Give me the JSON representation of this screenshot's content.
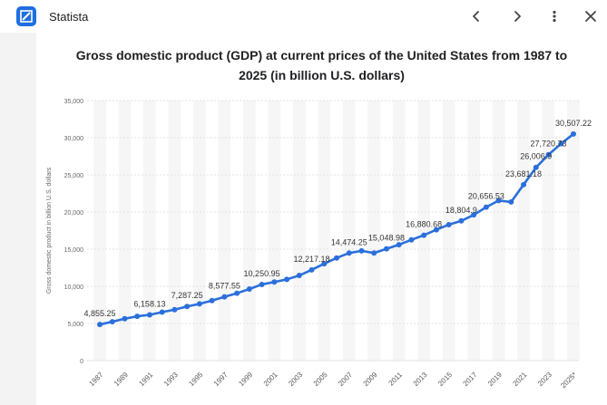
{
  "app": {
    "title": "Statista",
    "logo_icon": "statista-logo-icon",
    "brand_color": "#1f6fe0"
  },
  "nav": {
    "back_icon": "chevron-left-icon",
    "forward_icon": "chevron-right-icon",
    "menu_icon": "more-vertical-icon",
    "close_icon": "close-icon"
  },
  "chart_data": {
    "type": "line",
    "title_line1": "Gross domestic product (GDP) at current prices of the United States from 1987 to",
    "title_line2": "2025 (in billion U.S. dollars)",
    "ylabel": "Gross domestic product in billion U.S. dollars",
    "xlabel": "",
    "ylim": [
      0,
      35000
    ],
    "yticks": [
      0,
      5000,
      10000,
      15000,
      20000,
      25000,
      30000,
      35000
    ],
    "ytick_labels": [
      "0",
      "5,000",
      "10,000",
      "15,000",
      "20,000",
      "25,000",
      "30,000",
      "35,000"
    ],
    "grid": true,
    "line_color": "#2b6fdb",
    "x": [
      1987,
      1988,
      1989,
      1990,
      1991,
      1992,
      1993,
      1994,
      1995,
      1996,
      1997,
      1998,
      1999,
      2000,
      2001,
      2002,
      2003,
      2004,
      2005,
      2006,
      2007,
      2008,
      2009,
      2010,
      2011,
      2012,
      2013,
      2014,
      2015,
      2016,
      2017,
      2018,
      2019,
      2020,
      2021,
      2022,
      2023,
      2024,
      2025
    ],
    "xtick_labels": [
      "1987",
      "1989",
      "1991",
      "1993",
      "1995",
      "1997",
      "1999",
      "2001",
      "2003",
      "2005",
      "2007",
      "2009",
      "2011",
      "2013",
      "2015",
      "2017",
      "2019",
      "2021",
      "2023",
      "2025*"
    ],
    "values": [
      4855.25,
      5236,
      5641.6,
      5963.1,
      6158.13,
      6520.3,
      6858.6,
      7287.25,
      7639.7,
      8073.1,
      8577.55,
      9062.8,
      9631.2,
      10250.95,
      10581.9,
      10929.1,
      11456.4,
      12217.18,
      13039.2,
      13815.6,
      14474.25,
      14769.9,
      14478.1,
      15048.98,
      15599.7,
      16253.9,
      16880.68,
      17608.1,
      18295,
      18804.9,
      19612.1,
      20656.53,
      21539.98,
      21354.1,
      23681.18,
      26006.9,
      27720.73,
      29184.9,
      30507.22
    ],
    "data_labels": [
      {
        "index": 0,
        "text": "4,855.25"
      },
      {
        "index": 4,
        "text": "6,158.13"
      },
      {
        "index": 7,
        "text": "7,287.25"
      },
      {
        "index": 10,
        "text": "8,577.55"
      },
      {
        "index": 13,
        "text": "10,250.95"
      },
      {
        "index": 17,
        "text": "12,217.18"
      },
      {
        "index": 20,
        "text": "14,474.25"
      },
      {
        "index": 23,
        "text": "15,048.98"
      },
      {
        "index": 26,
        "text": "16,880.68"
      },
      {
        "index": 29,
        "text": "18,804.9"
      },
      {
        "index": 31,
        "text": "20,656.53"
      },
      {
        "index": 34,
        "text": "23,681.18"
      },
      {
        "index": 35,
        "text": "26,006.9"
      },
      {
        "index": 36,
        "text": "27,720.73"
      },
      {
        "index": 38,
        "text": "30,507.22"
      }
    ]
  }
}
